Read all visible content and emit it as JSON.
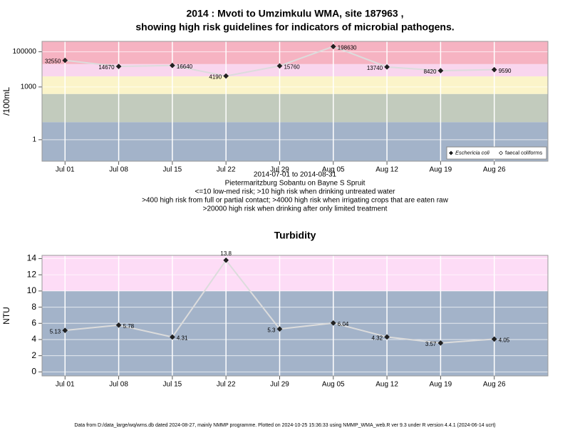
{
  "chart_data": [
    {
      "type": "line",
      "title": "2014 : Mvoti to Umzimkulu WMA, site 187963 ,",
      "subtitle": "showing high risk guidelines for indicators of microbial pathogens.",
      "notes": [
        "2014-07-01 to 2014-08-31",
        "Pietermaritzburg Sobantu on Bayne S Spruit",
        "<=10 low-med risk; >10 high risk when drinking untreated water",
        ">400 high risk from full or partial contact; >4000 high risk when irrigating crops that are eaten raw",
        ">20000 high risk when drinking after only limited treatment"
      ],
      "ylabel": "/100mL",
      "x": [
        "2014-07-01",
        "2014-07-08",
        "2014-07-15",
        "2014-07-22",
        "2014-07-29",
        "2014-08-05",
        "2014-08-12",
        "2014-08-19",
        "2014-08-26"
      ],
      "xlim": [
        "2014-06-28",
        "2014-09-02"
      ],
      "xticks": [
        {
          "value": "2014-07-01",
          "label": "Jul 01"
        },
        {
          "value": "2014-07-08",
          "label": "Jul 08"
        },
        {
          "value": "2014-07-15",
          "label": "Jul 15"
        },
        {
          "value": "2014-07-22",
          "label": "Jul 22"
        },
        {
          "value": "2014-07-29",
          "label": "Jul 29"
        },
        {
          "value": "2014-08-05",
          "label": "Aug 05"
        },
        {
          "value": "2014-08-12",
          "label": "Aug 12"
        },
        {
          "value": "2014-08-19",
          "label": "Aug 19"
        },
        {
          "value": "2014-08-26",
          "label": "Aug 26"
        }
      ],
      "ylim": [
        0.06,
        390000
      ],
      "yticks": [
        1,
        1000,
        100000
      ],
      "log_scale": true,
      "grid": true,
      "line_color": "#dcdcdc",
      "thresholds": [
        10,
        400,
        4000,
        20000
      ],
      "band_colors": [
        "#a3b3c9",
        "#c2cbbd",
        "#fbf4c9",
        "#f9d6ee",
        "#f6b3c2"
      ],
      "legend": "bottomright",
      "series": [
        {
          "name": "Eschericia coli",
          "color": "#222222",
          "values": [
            32550,
            14670,
            16640,
            4190,
            15760,
            198630,
            13740,
            8420,
            9590
          ]
        },
        {
          "name": "faecal coliforms",
          "color": "#ffffff",
          "values": [
            null,
            null,
            null,
            null,
            null,
            null,
            null,
            null,
            null
          ]
        }
      ]
    },
    {
      "type": "line",
      "title": "Turbidity",
      "ylabel": "NTU",
      "x": [
        "2014-07-01",
        "2014-07-08",
        "2014-07-15",
        "2014-07-22",
        "2014-07-29",
        "2014-08-05",
        "2014-08-12",
        "2014-08-19",
        "2014-08-26"
      ],
      "xlim": [
        "2014-06-28",
        "2014-09-02"
      ],
      "xticks": [
        {
          "value": "2014-07-01",
          "label": "Jul 01"
        },
        {
          "value": "2014-07-08",
          "label": "Jul 08"
        },
        {
          "value": "2014-07-15",
          "label": "Jul 15"
        },
        {
          "value": "2014-07-22",
          "label": "Jul 22"
        },
        {
          "value": "2014-07-29",
          "label": "Jul 29"
        },
        {
          "value": "2014-08-05",
          "label": "Aug 05"
        },
        {
          "value": "2014-08-12",
          "label": "Aug 12"
        },
        {
          "value": "2014-08-19",
          "label": "Aug 19"
        },
        {
          "value": "2014-08-26",
          "label": "Aug 26"
        }
      ],
      "ylim": [
        -0.5,
        14.4
      ],
      "yticks": [
        0,
        2,
        4,
        6,
        8,
        10,
        12,
        14
      ],
      "log_scale": false,
      "grid": true,
      "line_color": "#dcdcdc",
      "thresholds": [
        10
      ],
      "band_colors": [
        "#a3b3c9",
        "#fddcf6"
      ],
      "color": "#222222",
      "values": [
        5.13,
        5.78,
        4.31,
        13.8,
        5.3,
        6.04,
        4.32,
        3.57,
        4.05
      ]
    }
  ],
  "footer": "Data from D:/data_large/wq/wms.db dated 2024-08-27, mainly NMMP programme. Plotted on 2024-10-25 15:36:33 using NMMP_WMA_web.R ver 9.3 under R version 4.4.1 (2024-06-14 ucrt)"
}
